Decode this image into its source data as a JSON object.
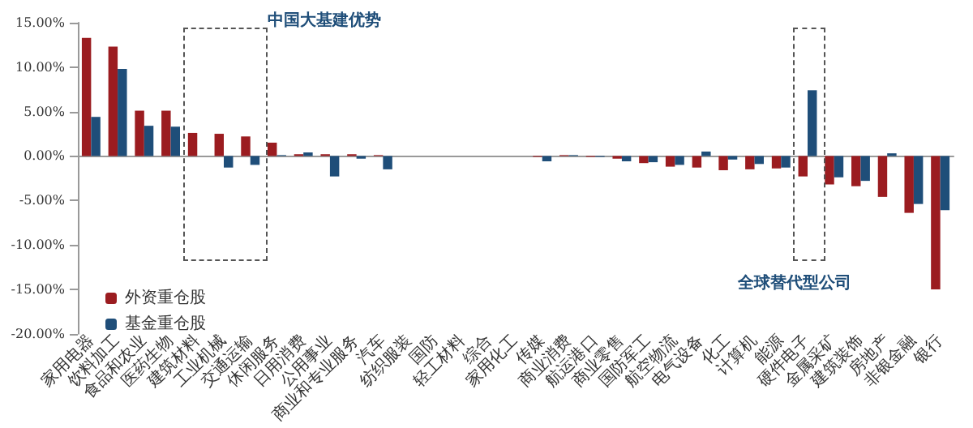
{
  "chart_data": {
    "type": "bar",
    "categories": [
      "家用电器",
      "饮料加工",
      "食品和农业",
      "医药生物",
      "建筑材料",
      "工业机械",
      "交通运输",
      "休闲服务",
      "日用消费",
      "公用事业",
      "商业和专业服务",
      "汽车",
      "纺织服装",
      "国防",
      "轻工材料",
      "综合",
      "家用化工",
      "传媒",
      "商业消费",
      "航运港口",
      "商业零售",
      "国防军工",
      "航空物流",
      "电气设备",
      "化工",
      "计算机",
      "能源",
      "硬件电子",
      "金属采矿",
      "建筑装饰",
      "房地产",
      "非银金融",
      "银行"
    ],
    "series": [
      {
        "name": "外资重仓股",
        "color": "#9b1c20",
        "values": [
          13.3,
          12.3,
          5.1,
          5.1,
          2.6,
          2.5,
          2.2,
          1.5,
          0.2,
          0.2,
          0.2,
          0.1,
          0,
          0,
          0,
          0,
          0,
          -0.1,
          0.1,
          -0.1,
          -0.3,
          -0.8,
          -1.2,
          -1.3,
          -1.6,
          -1.5,
          -1.4,
          -2.3,
          -3.2,
          -3.4,
          -4.6,
          -6.4,
          -15
        ]
      },
      {
        "name": "基金重仓股",
        "color": "#1f4e79",
        "values": [
          4.4,
          9.8,
          3.4,
          3.3,
          0,
          -1.3,
          -1,
          0.1,
          0.4,
          -2.3,
          -0.3,
          -1.5,
          0,
          0,
          0,
          0,
          0,
          -0.6,
          0.1,
          -0.1,
          -0.6,
          -0.7,
          -1,
          0.5,
          -0.4,
          -0.9,
          -1.3,
          7.4,
          -2.4,
          -2.8,
          0.3,
          -5.4,
          -6.1
        ]
      }
    ],
    "ylim": [
      -20,
      15
    ],
    "yticks": [
      {
        "value": -20,
        "label": "-20.00%"
      },
      {
        "value": -15,
        "label": "-15.00%"
      },
      {
        "value": -10,
        "label": "-10.00%"
      },
      {
        "value": -5,
        "label": "-5.00%"
      },
      {
        "value": 0,
        "label": "0.00%"
      },
      {
        "value": 5,
        "label": "5.00%"
      },
      {
        "value": 10,
        "label": "10.00%"
      },
      {
        "value": 15,
        "label": "15.00%"
      }
    ],
    "legend": "bottom left",
    "annotations": [
      "中国大基建优势",
      "全球替代型公司"
    ]
  }
}
